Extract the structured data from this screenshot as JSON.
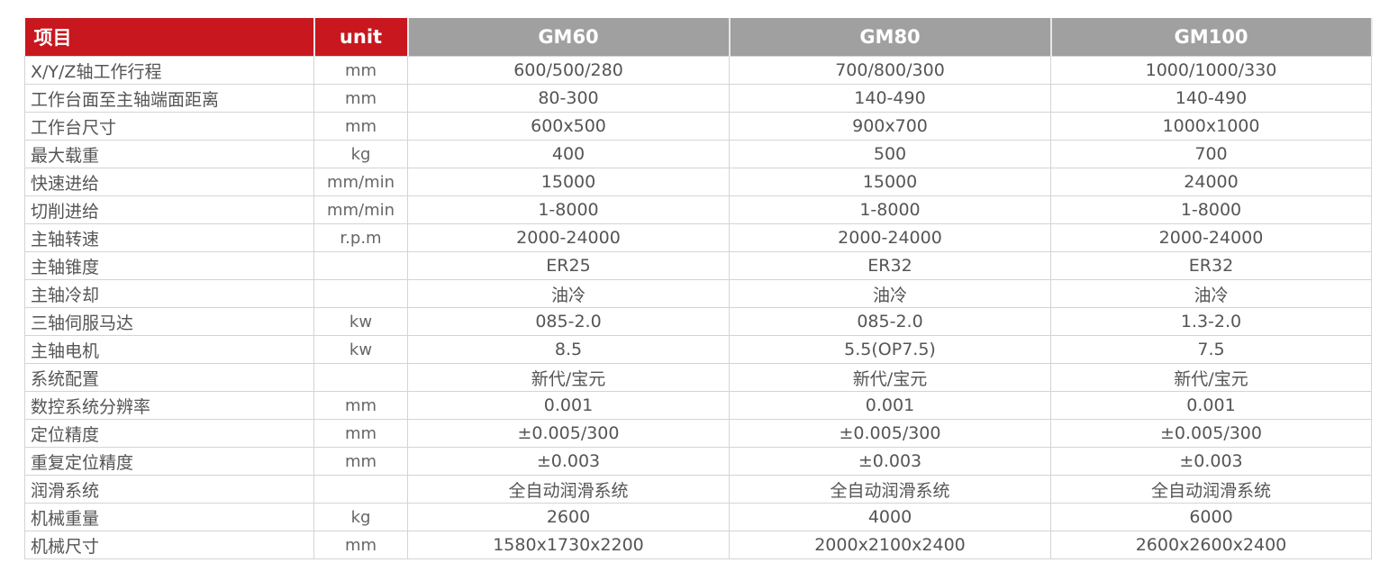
{
  "colors": {
    "header_red": "#c8171e",
    "header_gray": "#a0a0a0"
  },
  "header": {
    "item": "项目",
    "unit": "unit",
    "models": [
      "GM60",
      "GM80",
      "GM100"
    ]
  },
  "rows": [
    {
      "label": "X/Y/Z轴工作行程",
      "unit": "mm",
      "values": [
        "600/500/280",
        "700/800/300",
        "1000/1000/330"
      ]
    },
    {
      "label": "工作台面至主轴端面距离",
      "unit": "mm",
      "values": [
        "80-300",
        "140-490",
        "140-490"
      ]
    },
    {
      "label": "工作台尺寸",
      "unit": "mm",
      "values": [
        "600x500",
        "900x700",
        "1000x1000"
      ]
    },
    {
      "label": "最大载重",
      "unit": "kg",
      "values": [
        "400",
        "500",
        "700"
      ]
    },
    {
      "label": "快速进给",
      "unit": "mm/min",
      "values": [
        "15000",
        "15000",
        "24000"
      ]
    },
    {
      "label": "切削进给",
      "unit": "mm/min",
      "values": [
        "1-8000",
        "1-8000",
        "1-8000"
      ]
    },
    {
      "label": "主轴转速",
      "unit": "r.p.m",
      "values": [
        "2000-24000",
        "2000-24000",
        "2000-24000"
      ]
    },
    {
      "label": "主轴锥度",
      "unit": "",
      "values": [
        "ER25",
        "ER32",
        "ER32"
      ]
    },
    {
      "label": "主轴冷却",
      "unit": "",
      "values": [
        "油冷",
        "油冷",
        "油冷"
      ]
    },
    {
      "label": "三轴伺服马达",
      "unit": "kw",
      "values": [
        "085-2.0",
        "085-2.0",
        "1.3-2.0"
      ]
    },
    {
      "label": "主轴电机",
      "unit": "kw",
      "values": [
        "8.5",
        "5.5(OP7.5)",
        "7.5"
      ]
    },
    {
      "label": "系统配置",
      "unit": "",
      "values": [
        "新代/宝元",
        "新代/宝元",
        "新代/宝元"
      ]
    },
    {
      "label": "数控系统分辨率",
      "unit": "mm",
      "values": [
        "0.001",
        "0.001",
        "0.001"
      ]
    },
    {
      "label": "定位精度",
      "unit": "mm",
      "values": [
        "±0.005/300",
        "±0.005/300",
        "±0.005/300"
      ]
    },
    {
      "label": "重复定位精度",
      "unit": "mm",
      "values": [
        "±0.003",
        "±0.003",
        "±0.003"
      ]
    },
    {
      "label": "润滑系统",
      "unit": "",
      "values": [
        "全自动润滑系统",
        "全自动润滑系统",
        "全自动润滑系统"
      ]
    },
    {
      "label": "机械重量",
      "unit": "kg",
      "values": [
        "2600",
        "4000",
        "6000"
      ]
    },
    {
      "label": "机械尺寸",
      "unit": "mm",
      "values": [
        "1580x1730x2200",
        "2000x2100x2400",
        "2600x2600x2400"
      ]
    }
  ]
}
